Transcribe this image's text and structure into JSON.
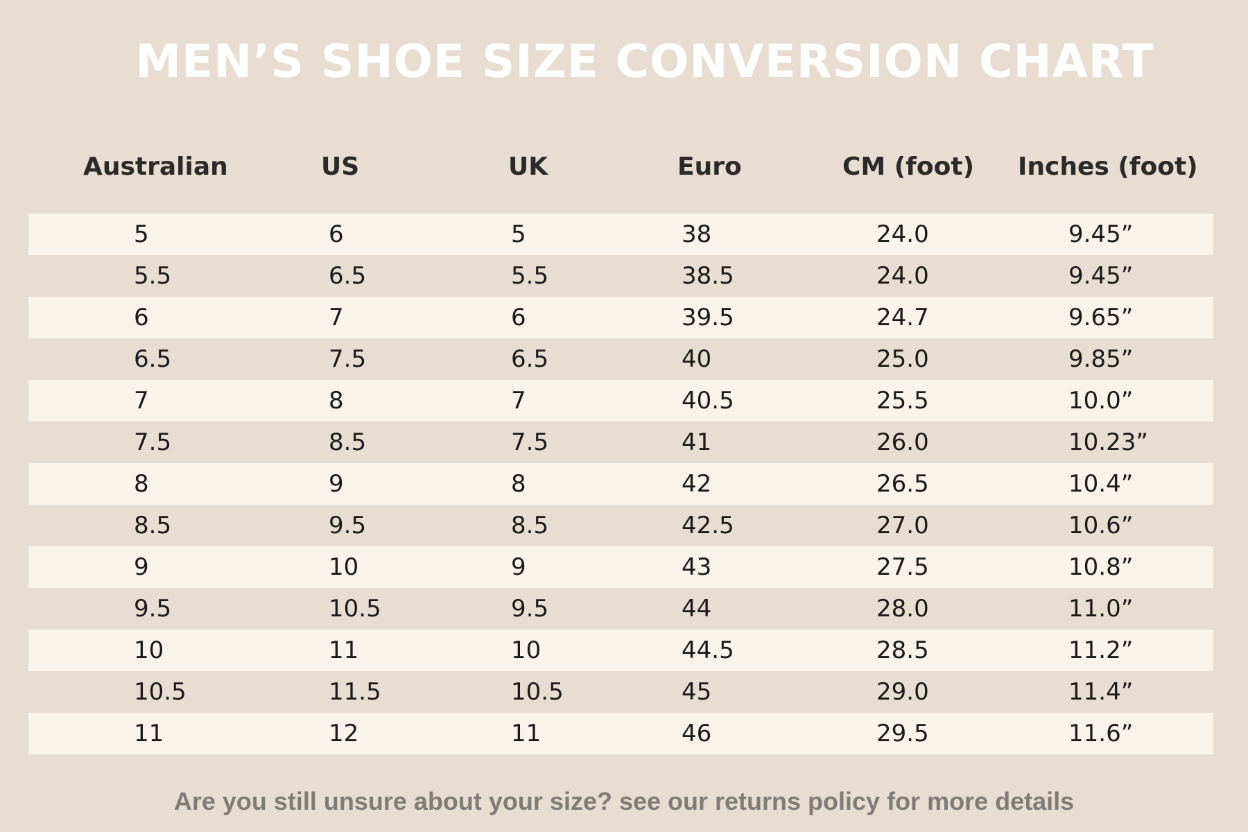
{
  "title": "MEN’S SHOE SIZE CONVERSION CHART",
  "columns": [
    "Australian",
    "US",
    "UK",
    "Euro",
    "CM (foot)",
    "Inches (foot)"
  ],
  "rows": [
    [
      "5",
      "6",
      "5",
      "38",
      "24.0",
      "9.45”"
    ],
    [
      "5.5",
      "6.5",
      "5.5",
      "38.5",
      "24.0",
      "9.45”"
    ],
    [
      "6",
      "7",
      "6",
      "39.5",
      "24.7",
      "9.65”"
    ],
    [
      "6.5",
      "7.5",
      "6.5",
      "40",
      "25.0",
      "9.85”"
    ],
    [
      "7",
      "8",
      "7",
      "40.5",
      "25.5",
      "10.0”"
    ],
    [
      "7.5",
      "8.5",
      "7.5",
      "41",
      "26.0",
      "10.23”"
    ],
    [
      "8",
      "9",
      "8",
      "42",
      "26.5",
      "10.4”"
    ],
    [
      "8.5",
      "9.5",
      "8.5",
      "42.5",
      "27.0",
      "10.6”"
    ],
    [
      "9",
      "10",
      "9",
      "43",
      "27.5",
      "10.8”"
    ],
    [
      "9.5",
      "10.5",
      "9.5",
      "44",
      "28.0",
      "11.0”"
    ],
    [
      "10",
      "11",
      "10",
      "44.5",
      "28.5",
      "11.2”"
    ],
    [
      "10.5",
      "11.5",
      "10.5",
      "45",
      "29.0",
      "11.4”"
    ],
    [
      "11",
      "12",
      "11",
      "46",
      "29.5",
      "11.6”"
    ]
  ],
  "footer": "Are you still unsure about your size? see our returns policy for more details",
  "colors": {
    "background": "#e8ddd1",
    "row_light": "#f8f4ec",
    "title": "#ffffff",
    "text": "#1a1a1a",
    "footer": "#7f7b77"
  }
}
